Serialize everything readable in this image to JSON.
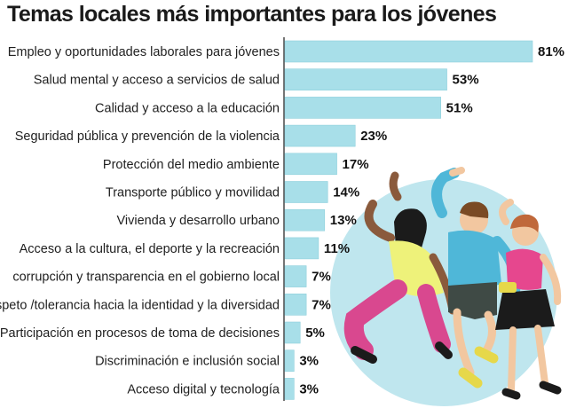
{
  "chart_data": {
    "type": "bar",
    "orientation": "horizontal",
    "title": "Temas locales más importantes para los jóvenes",
    "categories": [
      "Empleo y oportunidades laborales para jóvenes",
      "Salud mental y acceso a servicios de salud",
      "Calidad y acceso a la educación",
      "Seguridad pública y prevención de la violencia",
      "Protección del medio ambiente",
      "Transporte público y movilidad",
      "Vivienda y desarrollo urbano",
      "Acceso a la cultura, el deporte y la recreación",
      "corrupción y transparencia en el gobierno local",
      "Respeto /tolerancia hacia la identidad y la diversidad",
      "Participación en procesos de toma de decisiones",
      "Discriminación e inclusión social",
      "Acceso digital y tecnología"
    ],
    "values": [
      81,
      53,
      51,
      23,
      17,
      14,
      13,
      11,
      7,
      7,
      5,
      3,
      3
    ],
    "value_labels": [
      "81%",
      "53%",
      "51%",
      "23%",
      "17%",
      "14%",
      "13%",
      "11%",
      "7%",
      "7%",
      "5%",
      "3%",
      "3%"
    ],
    "xlim": [
      0,
      81
    ],
    "grid": false,
    "legend": "none",
    "colors": {
      "bar": "#a8dfe9",
      "bar_edge": "#8fd0dc",
      "circle": "#bfe6ee",
      "text": "#1f1f1f"
    }
  }
}
